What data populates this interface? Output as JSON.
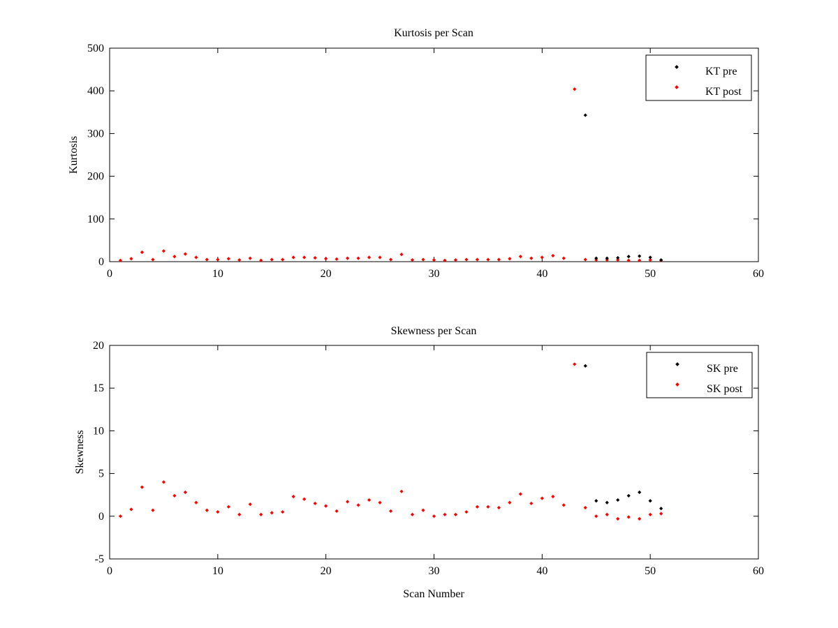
{
  "chart_data": [
    {
      "type": "scatter",
      "title": "Kurtosis per Scan",
      "xlabel": "",
      "ylabel": "Kurtosis",
      "xlim": [
        0,
        60
      ],
      "ylim": [
        0,
        500
      ],
      "xticks": [
        0,
        10,
        20,
        30,
        40,
        50,
        60
      ],
      "yticks": [
        0,
        100,
        200,
        300,
        400,
        500
      ],
      "grid": false,
      "legend_position": "top-right",
      "series": [
        {
          "name": "KT pre",
          "color": "#000000",
          "x": [
            44,
            45,
            46,
            47,
            48,
            49,
            50,
            51
          ],
          "y": [
            343,
            8,
            8,
            9,
            12,
            13,
            10,
            4
          ]
        },
        {
          "name": "KT post",
          "color": "#ff0000",
          "x": [
            1,
            2,
            3,
            4,
            5,
            6,
            7,
            8,
            9,
            10,
            11,
            12,
            13,
            14,
            15,
            16,
            17,
            18,
            19,
            20,
            21,
            22,
            23,
            24,
            25,
            26,
            27,
            28,
            29,
            30,
            31,
            32,
            33,
            34,
            35,
            36,
            37,
            38,
            39,
            40,
            41,
            42,
            43,
            44,
            45,
            46,
            47,
            48,
            49,
            50,
            51
          ],
          "y": [
            3,
            7,
            22,
            5,
            25,
            12,
            18,
            10,
            5,
            5,
            7,
            4,
            8,
            3,
            5,
            5,
            10,
            10,
            9,
            7,
            6,
            8,
            8,
            10,
            10,
            5,
            17,
            4,
            5,
            4,
            3,
            4,
            5,
            5,
            5,
            5,
            7,
            12,
            8,
            10,
            14,
            8,
            404,
            5,
            4,
            4,
            4,
            3,
            3,
            4,
            3
          ]
        }
      ]
    },
    {
      "type": "scatter",
      "title": "Skewness per Scan",
      "xlabel": "Scan Number",
      "ylabel": "Skewness",
      "xlim": [
        0,
        60
      ],
      "ylim": [
        -5,
        20
      ],
      "xticks": [
        0,
        10,
        20,
        30,
        40,
        50,
        60
      ],
      "yticks": [
        -5,
        0,
        5,
        10,
        15,
        20
      ],
      "grid": false,
      "legend_position": "top-right",
      "series": [
        {
          "name": "SK pre",
          "color": "#000000",
          "x": [
            44,
            45,
            46,
            47,
            48,
            49,
            50,
            51
          ],
          "y": [
            17.6,
            1.8,
            1.6,
            1.9,
            2.4,
            2.8,
            1.8,
            0.9
          ]
        },
        {
          "name": "SK post",
          "color": "#ff0000",
          "x": [
            1,
            2,
            3,
            4,
            5,
            6,
            7,
            8,
            9,
            10,
            11,
            12,
            13,
            14,
            15,
            16,
            17,
            18,
            19,
            20,
            21,
            22,
            23,
            24,
            25,
            26,
            27,
            28,
            29,
            30,
            31,
            32,
            33,
            34,
            35,
            36,
            37,
            38,
            39,
            40,
            41,
            42,
            43,
            44,
            45,
            46,
            47,
            48,
            49,
            50,
            51
          ],
          "y": [
            0.0,
            0.8,
            3.4,
            0.7,
            4.0,
            2.4,
            2.8,
            1.6,
            0.7,
            0.5,
            1.1,
            0.2,
            1.4,
            0.2,
            0.4,
            0.5,
            2.3,
            2.0,
            1.5,
            1.2,
            0.6,
            1.7,
            1.3,
            1.9,
            1.6,
            0.6,
            2.9,
            0.2,
            0.7,
            0.0,
            0.2,
            0.2,
            0.5,
            1.1,
            1.1,
            1.0,
            1.6,
            2.6,
            1.5,
            2.1,
            2.3,
            1.3,
            17.8,
            1.0,
            0.0,
            0.2,
            -0.3,
            -0.1,
            -0.3,
            0.2,
            0.3
          ]
        }
      ]
    }
  ]
}
